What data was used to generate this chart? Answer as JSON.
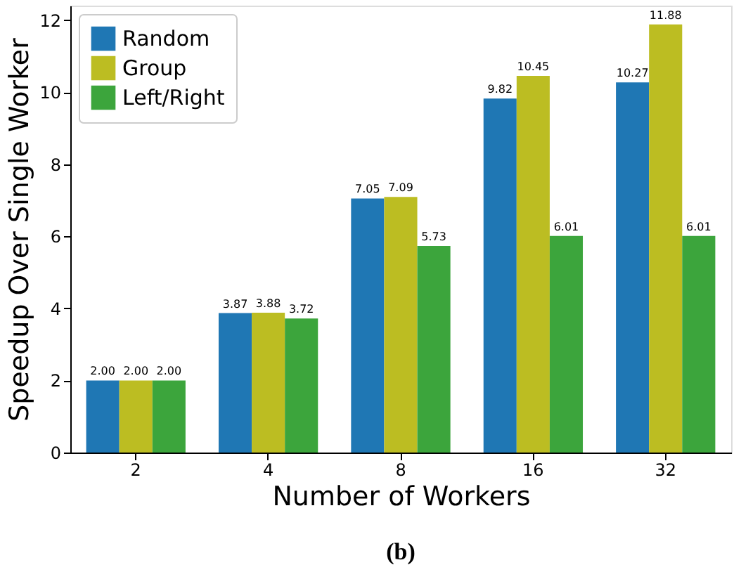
{
  "chart_data": {
    "type": "bar",
    "xlabel": "Number of Workers",
    "ylabel": "Speedup Over Single Worker",
    "categories": [
      "2",
      "4",
      "8",
      "16",
      "32"
    ],
    "series": [
      {
        "name": "Random",
        "color": "#1f77b4",
        "values": [
          2.0,
          3.87,
          7.05,
          9.82,
          10.27
        ],
        "value_labels": [
          "2.00",
          "3.87",
          "7.05",
          "9.82",
          "10.27"
        ]
      },
      {
        "name": "Group",
        "color": "#bcbd22",
        "values": [
          2.0,
          3.88,
          7.09,
          10.45,
          11.88
        ],
        "value_labels": [
          "2.00",
          "3.88",
          "7.09",
          "10.45",
          "11.88"
        ]
      },
      {
        "name": "Left/Right",
        "color": "#3ca53c",
        "values": [
          2.0,
          3.72,
          5.73,
          6.01,
          6.01
        ],
        "value_labels": [
          "2.00",
          "3.72",
          "5.73",
          "6.01",
          "6.01"
        ]
      }
    ],
    "ylim": [
      0,
      12.4
    ],
    "yticks": [
      0,
      2,
      4,
      6,
      8,
      10,
      12
    ],
    "grid": false,
    "legend": "top left",
    "annotations": [
      "(b)"
    ]
  }
}
